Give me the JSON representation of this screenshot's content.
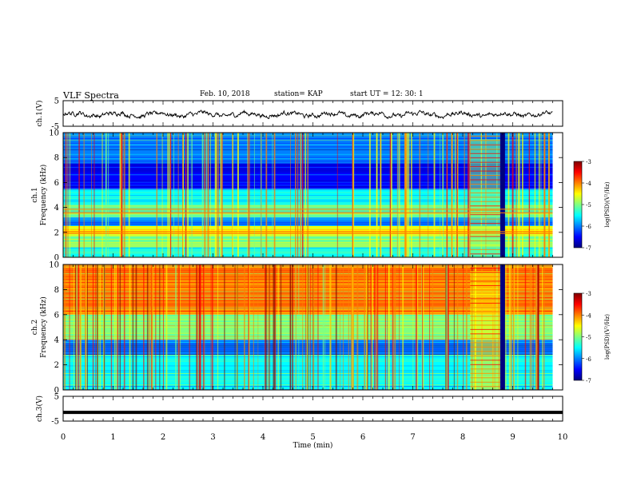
{
  "header": {
    "title": "VLF Spectra",
    "date": "Feb. 10, 2018",
    "station": "station= KAP",
    "start": "start  UT  =   12: 30: 1"
  },
  "chart_data": [
    {
      "type": "line",
      "panel": "ch1-waveform",
      "ylabel": "ch.1(V)",
      "ylim": [
        -5,
        5
      ],
      "yticks": [
        5,
        -5
      ],
      "xlim": [
        0,
        10
      ],
      "description_values": "noisy waveform around 0 V, amplitude about ±1.5 V, from 0 to 9.8 min"
    },
    {
      "type": "heatmap",
      "panel": "ch1-spectrogram",
      "ylabel": "ch.1\nFrequency (kHz)",
      "ylim": [
        0,
        10
      ],
      "yticks": [
        0,
        2,
        4,
        6,
        8,
        10
      ],
      "xlim": [
        0,
        10
      ],
      "data_extent_min": [
        0,
        9.8
      ],
      "bands_khz": [
        {
          "from": 0,
          "to": 0.8,
          "level": -5.3
        },
        {
          "from": 0.8,
          "to": 1.7,
          "level": -5.0
        },
        {
          "from": 1.7,
          "to": 2.5,
          "level": -4.6
        },
        {
          "from": 2.5,
          "to": 3.2,
          "level": -5.9
        },
        {
          "from": 3.2,
          "to": 4.2,
          "level": -5.2
        },
        {
          "from": 4.2,
          "to": 5.5,
          "level": -5.6
        },
        {
          "from": 5.5,
          "to": 7.5,
          "level": -6.3
        },
        {
          "from": 7.5,
          "to": 9.0,
          "level": -6.1
        },
        {
          "from": 9.0,
          "to": 10.0,
          "level": -5.8
        }
      ],
      "burst_min": [
        8.15,
        8.75
      ],
      "colorbar": {
        "label": "log(PSD)(V²/Hz)",
        "range": [
          -7,
          -3
        ],
        "ticks": [
          -3,
          -4,
          -5,
          -6,
          -7
        ]
      }
    },
    {
      "type": "heatmap",
      "panel": "ch2-spectrogram",
      "ylabel": "ch.2\nFrequency (kHz)",
      "ylim": [
        0,
        10
      ],
      "yticks": [
        0,
        2,
        4,
        6,
        8,
        10
      ],
      "xlim": [
        0,
        10
      ],
      "data_extent_min": [
        0,
        9.8
      ],
      "bands_khz": [
        {
          "from": 0,
          "to": 0.8,
          "level": -5.4
        },
        {
          "from": 0.8,
          "to": 2.8,
          "level": -5.3
        },
        {
          "from": 2.8,
          "to": 4.0,
          "level": -6.1
        },
        {
          "from": 4.0,
          "to": 6.0,
          "level": -4.9
        },
        {
          "from": 6.0,
          "to": 10.0,
          "level": -4.3
        }
      ],
      "burst_min": [
        8.15,
        8.75
      ],
      "colorbar": {
        "label": "log(PSD)(V²/Hz)",
        "range": [
          -7,
          -3
        ],
        "ticks": [
          -3,
          -4,
          -5,
          -6,
          -7
        ]
      }
    },
    {
      "type": "line",
      "panel": "ch3-waveform",
      "ylabel": "ch.3(V)",
      "ylim": [
        -5,
        5
      ],
      "yticks": [
        5,
        -5
      ],
      "xlim": [
        0,
        10
      ],
      "values_constant_v": -1.5
    }
  ],
  "xaxis": {
    "label": "Time  (min)",
    "ticks": [
      "0",
      "1",
      "2",
      "3",
      "4",
      "5",
      "6",
      "7",
      "8",
      "9",
      "10"
    ]
  },
  "colormap": [
    "#00007f",
    "#0000ff",
    "#0080ff",
    "#00ffff",
    "#80ff80",
    "#ffff00",
    "#ff8000",
    "#ff0000",
    "#7f0000"
  ]
}
